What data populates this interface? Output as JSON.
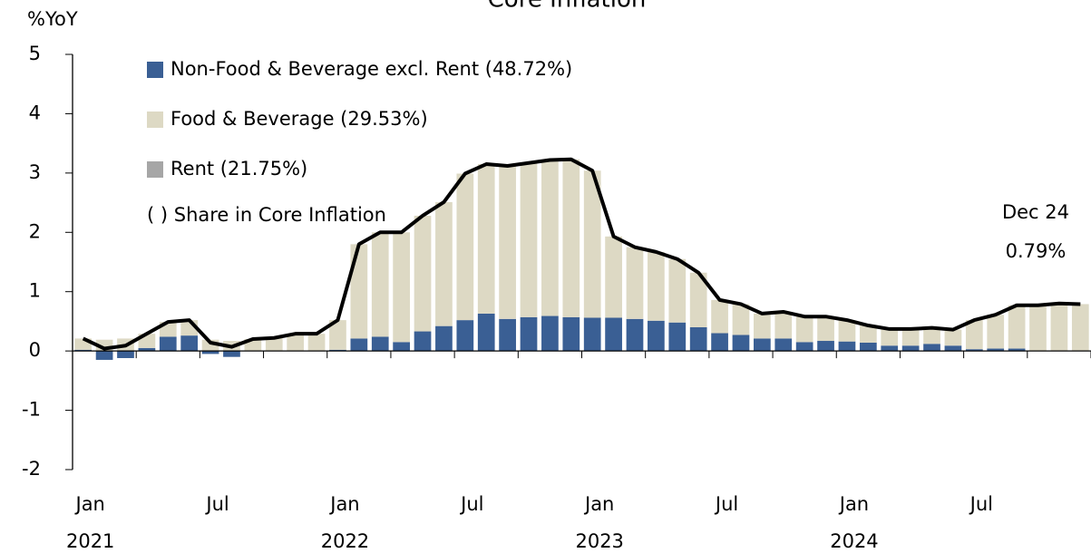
{
  "chart_data": {
    "type": "bar",
    "title": "Core Inflation",
    "y_label": "%YoY",
    "categories": [
      "Jan 2021",
      null,
      null,
      null,
      null,
      null,
      "Jul",
      null,
      null,
      null,
      null,
      null,
      "Jan 2022",
      null,
      null,
      null,
      null,
      null,
      "Jul",
      null,
      null,
      null,
      null,
      null,
      "Jan 2023",
      null,
      null,
      null,
      null,
      null,
      "Jul",
      null,
      null,
      null,
      null,
      null,
      "Jan 2024",
      null,
      null,
      null,
      null,
      null,
      "Jul",
      null,
      null,
      null,
      null,
      null
    ],
    "series": [
      {
        "name": "Non-Food & Beverage excl. Rent (48.72%)",
        "color": "#3a5f94",
        "values": [
          0.02,
          -0.15,
          -0.12,
          0.05,
          0.24,
          0.26,
          -0.05,
          -0.1,
          0.0,
          0.01,
          0.01,
          0.01,
          0.02,
          0.21,
          0.24,
          0.15,
          0.33,
          0.42,
          0.52,
          0.63,
          0.54,
          0.57,
          0.59,
          0.57,
          0.56,
          0.56,
          0.54,
          0.51,
          0.48,
          0.4,
          0.3,
          0.27,
          0.21,
          0.21,
          0.15,
          0.17,
          0.16,
          0.14,
          0.09,
          0.09,
          0.12,
          0.09,
          0.03,
          0.04,
          0.04,
          0.0,
          0.0,
          0.0
        ]
      },
      {
        "name": "Food & Beverage (29.53%)",
        "color": "#ddd9c4",
        "values": [
          0.19,
          0.19,
          0.21,
          0.24,
          0.25,
          0.26,
          0.19,
          0.17,
          0.2,
          0.21,
          0.28,
          0.28,
          0.5,
          1.59,
          1.76,
          1.85,
          1.95,
          2.09,
          2.47,
          2.52,
          2.58,
          2.6,
          2.63,
          2.66,
          2.48,
          1.37,
          1.21,
          1.16,
          1.07,
          0.92,
          0.56,
          0.52,
          0.42,
          0.45,
          0.43,
          0.41,
          0.36,
          0.29,
          0.28,
          0.28,
          0.27,
          0.27,
          0.49,
          0.57,
          0.73,
          0.77,
          0.8,
          0.79
        ]
      },
      {
        "name": "Rent (21.75%)",
        "color": "#a6a6a6",
        "values": [
          0,
          0,
          0,
          0,
          0,
          0,
          0,
          0,
          0,
          0,
          0,
          0,
          0,
          0,
          0,
          0,
          0,
          0,
          0,
          0,
          0,
          0,
          0,
          0,
          0,
          0,
          0,
          0,
          0,
          0,
          0,
          0,
          0,
          0,
          0,
          0,
          0,
          0,
          0,
          0,
          0,
          0,
          0,
          0,
          0,
          0,
          0,
          0
        ]
      }
    ],
    "line": {
      "color": "#000000",
      "values": [
        0.21,
        0.04,
        0.09,
        0.29,
        0.49,
        0.52,
        0.14,
        0.07,
        0.2,
        0.22,
        0.29,
        0.29,
        0.52,
        1.8,
        2.0,
        2.0,
        2.28,
        2.51,
        2.99,
        3.15,
        3.12,
        3.17,
        3.22,
        3.23,
        3.04,
        1.93,
        1.75,
        1.67,
        1.55,
        1.32,
        0.86,
        0.79,
        0.63,
        0.66,
        0.58,
        0.58,
        0.52,
        0.43,
        0.37,
        0.37,
        0.39,
        0.36,
        0.52,
        0.61,
        0.77,
        0.77,
        0.8,
        0.79
      ],
      "value_labels": [
        null,
        null,
        null,
        null,
        null,
        null,
        null,
        null,
        null,
        null,
        null,
        null,
        null,
        null,
        null,
        null,
        null,
        null,
        null,
        null,
        null,
        null,
        null,
        null,
        null,
        null,
        null,
        null,
        null,
        null,
        null,
        null,
        null,
        null,
        null,
        null,
        null,
        null,
        null,
        null,
        null,
        null,
        null,
        null,
        null,
        null,
        null,
        "0.79%"
      ]
    },
    "legend_note": "( ) Share in Core Inflation",
    "annotation": "Dec 24",
    "ylim": [
      -2,
      5
    ],
    "yticks": [
      -2,
      -1,
      0,
      1,
      2,
      3,
      4,
      5
    ]
  }
}
